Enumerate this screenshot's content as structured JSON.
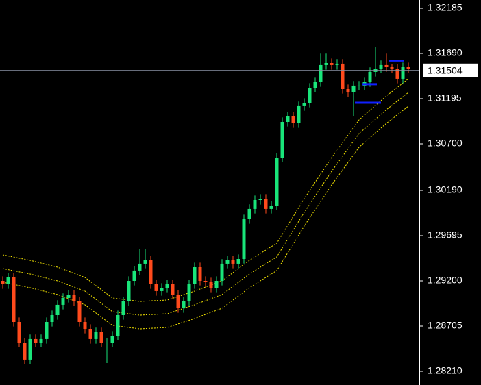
{
  "chart_data": {
    "type": "candlestick",
    "ylim": [
      1.2806,
      1.32275
    ],
    "yticks": [
      1.32185,
      {
        "value": 1.3169,
        "label": "1.31690"
      },
      1.31195,
      {
        "value": 1.307,
        "label": "1.30700"
      },
      {
        "value": 1.3019,
        "label": "1.30190"
      },
      1.29695,
      {
        "value": 1.292,
        "label": "1.29200"
      },
      1.28705,
      {
        "value": 1.2821,
        "label": "1.28210"
      }
    ],
    "up_color": "#19e57a",
    "down_color": "#ff4a1c",
    "current_price": 1.31504,
    "current_price_color": "#8a93a6",
    "candles": {
      "open": [
        1.292,
        1.29163,
        1.29238,
        1.2875,
        1.28525,
        1.28338,
        1.28563,
        1.28525,
        1.28563,
        1.2875,
        1.28825,
        1.28938,
        1.29013,
        1.2905,
        1.28975,
        1.2875,
        1.28675,
        1.28563,
        1.28638,
        1.28525,
        1.28525,
        1.286,
        1.28825,
        1.28975,
        1.292,
        1.29313,
        1.29388,
        1.29425,
        1.29163,
        1.29088,
        1.29125,
        1.29163,
        1.2905,
        1.289,
        1.28975,
        1.29163,
        1.2935,
        1.292,
        1.29185,
        1.29125,
        1.292,
        1.29388,
        1.29425,
        1.29388,
        1.2944,
        1.29875,
        1.29988,
        1.30085,
        1.301,
        1.29988,
        1.30025,
        1.3055,
        1.3094,
        1.31,
        1.30925,
        1.31113,
        1.3115,
        1.31315,
        1.31375,
        1.31563,
        1.31585,
        1.31563,
        1.31578,
        1.313,
        1.31263,
        1.31338,
        1.31338,
        1.31375,
        1.31488,
        1.31525,
        1.31563,
        1.3154,
        1.31525,
        1.31413,
        1.3154
      ],
      "high": [
        1.2925,
        1.29288,
        1.29288,
        1.288,
        1.28575,
        1.28613,
        1.28613,
        1.28613,
        1.288,
        1.28875,
        1.28988,
        1.29063,
        1.291,
        1.291,
        1.29025,
        1.288,
        1.28725,
        1.28688,
        1.28688,
        1.28575,
        1.2865,
        1.28875,
        1.29025,
        1.2925,
        1.29363,
        1.2955,
        1.2955,
        1.29475,
        1.29213,
        1.29175,
        1.29213,
        1.29213,
        1.291,
        1.29025,
        1.29213,
        1.294,
        1.294,
        1.2925,
        1.29235,
        1.2925,
        1.29438,
        1.29475,
        1.29475,
        1.2949,
        1.29925,
        1.30038,
        1.30135,
        1.3015,
        1.3015,
        1.30075,
        1.306,
        1.3099,
        1.3105,
        1.3105,
        1.31163,
        1.312,
        1.31365,
        1.31425,
        1.31688,
        1.31688,
        1.31635,
        1.31628,
        1.31628,
        1.3135,
        1.31388,
        1.31388,
        1.31425,
        1.31538,
        1.31763,
        1.31613,
        1.31688,
        1.31575,
        1.31575,
        1.3159,
        1.3159
      ],
      "low": [
        1.29113,
        1.29113,
        1.287,
        1.28475,
        1.28288,
        1.28288,
        1.28475,
        1.28475,
        1.28513,
        1.287,
        1.28775,
        1.28888,
        1.28963,
        1.28925,
        1.287,
        1.28625,
        1.28513,
        1.28513,
        1.28475,
        1.283,
        1.28475,
        1.2855,
        1.28775,
        1.28925,
        1.2915,
        1.29263,
        1.29338,
        1.29113,
        1.29038,
        1.29038,
        1.29075,
        1.29,
        1.2885,
        1.2885,
        1.28925,
        1.29113,
        1.2915,
        1.29135,
        1.29075,
        1.29075,
        1.2915,
        1.29338,
        1.29338,
        1.29338,
        1.2939,
        1.29825,
        1.29938,
        1.30035,
        1.29938,
        1.29938,
        1.29975,
        1.305,
        1.3089,
        1.30875,
        1.30875,
        1.31063,
        1.311,
        1.31265,
        1.31325,
        1.31513,
        1.31513,
        1.31513,
        1.3125,
        1.31213,
        1.31,
        1.31288,
        1.31288,
        1.31325,
        1.31438,
        1.31475,
        1.3149,
        1.31475,
        1.31363,
        1.31363,
        1.31475
      ],
      "close": [
        1.29163,
        1.29238,
        1.2875,
        1.28525,
        1.28338,
        1.28563,
        1.28525,
        1.28563,
        1.2875,
        1.28825,
        1.28938,
        1.29013,
        1.2905,
        1.28975,
        1.2875,
        1.28675,
        1.28563,
        1.28638,
        1.28525,
        1.28525,
        1.286,
        1.28825,
        1.28975,
        1.292,
        1.29313,
        1.29388,
        1.29425,
        1.29163,
        1.29088,
        1.29125,
        1.29163,
        1.2905,
        1.289,
        1.28975,
        1.29163,
        1.2935,
        1.292,
        1.29185,
        1.29125,
        1.292,
        1.29388,
        1.29425,
        1.29388,
        1.2944,
        1.29875,
        1.29988,
        1.30085,
        1.301,
        1.29988,
        1.30025,
        1.3055,
        1.3094,
        1.31,
        1.30925,
        1.31113,
        1.3115,
        1.31315,
        1.31375,
        1.31563,
        1.31585,
        1.31563,
        1.31578,
        1.313,
        1.31263,
        1.31338,
        1.31338,
        1.31375,
        1.31488,
        1.31525,
        1.31563,
        1.3154,
        1.31525,
        1.31413,
        1.3154,
        1.31525
      ]
    },
    "bands": {
      "color": "#f2e200",
      "x": [
        0,
        5,
        10,
        15,
        20,
        25,
        30,
        35,
        40,
        45,
        50,
        55,
        60,
        65,
        70,
        74
      ],
      "series": [
        {
          "values": [
            1.29485,
            1.29425,
            1.2935,
            1.29238,
            1.29013,
            1.28975,
            1.2899,
            1.29088,
            1.292,
            1.29425,
            1.29613,
            1.301,
            1.3055,
            1.30963,
            1.31225,
            1.31413
          ]
        },
        {
          "values": [
            1.29335,
            1.29275,
            1.292,
            1.29088,
            1.28863,
            1.28825,
            1.2884,
            1.28938,
            1.2905,
            1.29275,
            1.29463,
            1.2995,
            1.304,
            1.30813,
            1.31075,
            1.31263
          ]
        },
        {
          "values": [
            1.29185,
            1.29125,
            1.2905,
            1.28938,
            1.28713,
            1.28675,
            1.2869,
            1.28788,
            1.289,
            1.29125,
            1.29313,
            1.298,
            1.3025,
            1.30663,
            1.30925,
            1.31113
          ]
        }
      ]
    },
    "levels": {
      "color": "#1020ff",
      "values": [
        1.31608,
        1.31353,
        1.3115
      ]
    }
  }
}
